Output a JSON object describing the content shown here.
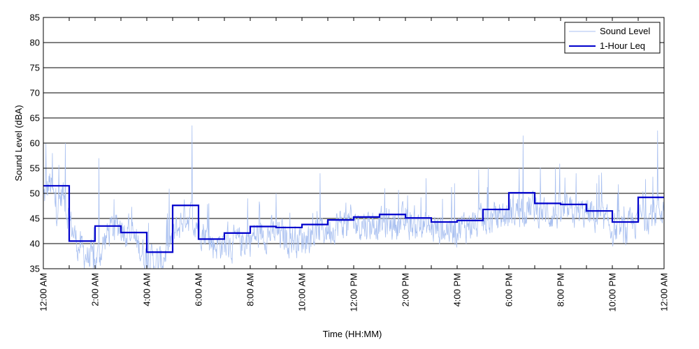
{
  "chart_data": {
    "type": "line",
    "title": "",
    "xlabel": "Time (HH:MM)",
    "ylabel": "Sound Level (dBA)",
    "ylim": [
      35,
      85
    ],
    "yticks": [
      35,
      40,
      45,
      50,
      55,
      60,
      65,
      70,
      75,
      80,
      85
    ],
    "xlim_hours": [
      0,
      24
    ],
    "xticks": [
      {
        "hour": 0,
        "label": "12:00 AM"
      },
      {
        "hour": 2,
        "label": "2:00 AM"
      },
      {
        "hour": 4,
        "label": "4:00 AM"
      },
      {
        "hour": 6,
        "label": "6:00 AM"
      },
      {
        "hour": 8,
        "label": "8:00 AM"
      },
      {
        "hour": 10,
        "label": "10:00 AM"
      },
      {
        "hour": 12,
        "label": "12:00 PM"
      },
      {
        "hour": 14,
        "label": "2:00 PM"
      },
      {
        "hour": 16,
        "label": "4:00 PM"
      },
      {
        "hour": 18,
        "label": "6:00 PM"
      },
      {
        "hour": 20,
        "label": "8:00 PM"
      },
      {
        "hour": 22,
        "label": "10:00 PM"
      },
      {
        "hour": 24,
        "label": "12:00 AM"
      }
    ],
    "grid": "horizontal",
    "legend_position": "top-right",
    "series": [
      {
        "name": "Sound Level",
        "color": "#a9c0f0",
        "style": "thin-line",
        "anchors": [
          {
            "hour": 0.0,
            "level": 49
          },
          {
            "hour": 0.25,
            "level": 52
          },
          {
            "hour": 0.5,
            "level": 47
          },
          {
            "hour": 0.75,
            "level": 50
          },
          {
            "hour": 1.0,
            "level": 45
          },
          {
            "hour": 1.3,
            "level": 40
          },
          {
            "hour": 1.6,
            "level": 38
          },
          {
            "hour": 2.0,
            "level": 36
          },
          {
            "hour": 2.5,
            "level": 42
          },
          {
            "hour": 3.0,
            "level": 44
          },
          {
            "hour": 3.5,
            "level": 41
          },
          {
            "hour": 4.0,
            "level": 37
          },
          {
            "hour": 4.5,
            "level": 36
          },
          {
            "hour": 5.0,
            "level": 41
          },
          {
            "hour": 5.5,
            "level": 46
          },
          {
            "hour": 6.0,
            "level": 44
          },
          {
            "hour": 6.5,
            "level": 40
          },
          {
            "hour": 7.0,
            "level": 40
          },
          {
            "hour": 7.5,
            "level": 40
          },
          {
            "hour": 8.0,
            "level": 41
          },
          {
            "hour": 8.5,
            "level": 42
          },
          {
            "hour": 9.0,
            "level": 42
          },
          {
            "hour": 9.5,
            "level": 41
          },
          {
            "hour": 10.0,
            "level": 41
          },
          {
            "hour": 10.5,
            "level": 42
          },
          {
            "hour": 11.0,
            "level": 43
          },
          {
            "hour": 11.5,
            "level": 44
          },
          {
            "hour": 12.0,
            "level": 44
          },
          {
            "hour": 12.5,
            "level": 44
          },
          {
            "hour": 13.0,
            "level": 44
          },
          {
            "hour": 13.5,
            "level": 44
          },
          {
            "hour": 14.0,
            "level": 44
          },
          {
            "hour": 14.5,
            "level": 44
          },
          {
            "hour": 15.0,
            "level": 43
          },
          {
            "hour": 15.5,
            "level": 43
          },
          {
            "hour": 16.0,
            "level": 43
          },
          {
            "hour": 16.5,
            "level": 44
          },
          {
            "hour": 17.0,
            "level": 44
          },
          {
            "hour": 17.5,
            "level": 45
          },
          {
            "hour": 18.0,
            "level": 46
          },
          {
            "hour": 18.5,
            "level": 47
          },
          {
            "hour": 19.0,
            "level": 47
          },
          {
            "hour": 19.5,
            "level": 46
          },
          {
            "hour": 20.0,
            "level": 46
          },
          {
            "hour": 20.5,
            "level": 46
          },
          {
            "hour": 21.0,
            "level": 46
          },
          {
            "hour": 21.5,
            "level": 45
          },
          {
            "hour": 22.0,
            "level": 43
          },
          {
            "hour": 22.5,
            "level": 42
          },
          {
            "hour": 23.0,
            "level": 45
          },
          {
            "hour": 23.5,
            "level": 46
          },
          {
            "hour": 24.0,
            "level": 47
          }
        ],
        "spikes": [
          {
            "hour": 0.1,
            "level": 60
          },
          {
            "hour": 0.35,
            "level": 58
          },
          {
            "hour": 0.85,
            "level": 60
          },
          {
            "hour": 2.15,
            "level": 57
          },
          {
            "hour": 3.3,
            "level": 46
          },
          {
            "hour": 4.8,
            "level": 46
          },
          {
            "hour": 5.75,
            "level": 63.5
          },
          {
            "hour": 6.4,
            "level": 48
          },
          {
            "hour": 7.9,
            "level": 49
          },
          {
            "hour": 9.0,
            "level": 50
          },
          {
            "hour": 10.7,
            "level": 54
          },
          {
            "hour": 13.2,
            "level": 51
          },
          {
            "hour": 14.8,
            "level": 53
          },
          {
            "hour": 15.9,
            "level": 52
          },
          {
            "hour": 17.2,
            "level": 55
          },
          {
            "hour": 18.4,
            "level": 55
          },
          {
            "hour": 18.55,
            "level": 61.5
          },
          {
            "hour": 19.8,
            "level": 55
          },
          {
            "hour": 20.6,
            "level": 54
          },
          {
            "hour": 21.4,
            "level": 52
          },
          {
            "hour": 23.75,
            "level": 62.5
          }
        ]
      },
      {
        "name": "1-Hour Leq",
        "color": "#0000cc",
        "style": "step",
        "hours": [
          0,
          1,
          2,
          3,
          4,
          5,
          6,
          7,
          8,
          9,
          10,
          11,
          12,
          13,
          14,
          15,
          16,
          17,
          18,
          19,
          20,
          21,
          22,
          23
        ],
        "values": [
          51.5,
          40.5,
          43.5,
          42.2,
          38.3,
          47.6,
          40.9,
          42.1,
          43.4,
          43.2,
          43.8,
          44.7,
          45.3,
          45.8,
          45.1,
          44.3,
          44.6,
          46.8,
          50.1,
          48.0,
          47.8,
          46.5,
          44.3,
          49.2
        ]
      }
    ]
  }
}
